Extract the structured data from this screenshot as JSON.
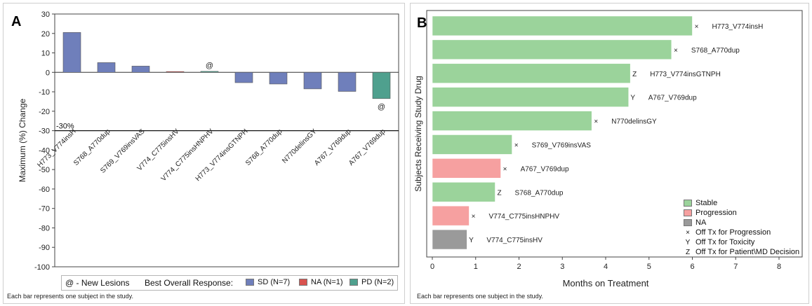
{
  "panel_a": {
    "label": "A",
    "footnote": "Each bar represents one subject in the study.",
    "legend": {
      "new_lesions": "@ - New Lesions",
      "title": "Best Overall Response:",
      "items": [
        {
          "label": "SD (N=7)",
          "color": "#6f7fbb"
        },
        {
          "label": "NA (N=1)",
          "color": "#d9534f"
        },
        {
          "label": "PD (N=2)",
          "color": "#4fa08e"
        }
      ]
    }
  },
  "panel_b": {
    "label": "B",
    "footnote": "Each bar represents one subject in the study.",
    "legend": {
      "items": [
        {
          "label": "Stable",
          "kind": "swatch",
          "color": "#9bd39b"
        },
        {
          "label": "Progression",
          "kind": "swatch",
          "color": "#f6a0a0"
        },
        {
          "label": "NA",
          "kind": "swatch",
          "color": "#9a9a9a"
        },
        {
          "label": "Off Tx for Progression",
          "kind": "symbol",
          "symbol": "×"
        },
        {
          "label": "Off Tx for Toxicity",
          "kind": "symbol",
          "symbol": "Y"
        },
        {
          "label": "Off Tx for Patient\\MD Decision",
          "kind": "symbol",
          "symbol": "Z"
        }
      ]
    }
  },
  "chart_data": [
    {
      "type": "bar",
      "ylabel": "Maximum (%) Change",
      "ylim": [
        -100,
        30
      ],
      "yticks": [
        30,
        20,
        10,
        0,
        -10,
        -20,
        -30,
        -40,
        -50,
        -60,
        -70,
        -80,
        -90,
        -100
      ],
      "reference_line": {
        "value": -30,
        "label": "-30%"
      },
      "categories": [
        "H773_V774insH",
        "S768_A770dup",
        "S769_V769insVAS",
        "V774_C775insHV",
        "V774_C775insHNPHV",
        "H773_V774insGTNPH",
        "S768_A770dup",
        "N770delinsGY",
        "A767_V769dup",
        "A767_V769dup"
      ],
      "values": [
        20.5,
        5,
        3.2,
        0.4,
        0.5,
        -5.3,
        -6,
        -8.5,
        -9.8,
        -13.5
      ],
      "response": [
        "SD",
        "SD",
        "SD",
        "NA",
        "PD",
        "SD",
        "SD",
        "SD",
        "SD",
        "PD"
      ],
      "annotations": [
        "",
        "",
        "",
        "",
        "@",
        "",
        "",
        "",
        "",
        "@"
      ],
      "colors": {
        "SD": "#6f7fbb",
        "NA": "#d9534f",
        "PD": "#4fa08e"
      },
      "grid": false
    },
    {
      "type": "bar",
      "orientation": "horizontal",
      "xlabel": "Months on Treatment",
      "ylabel": "Subjects Receiving Study Drug",
      "xlim": [
        0,
        8
      ],
      "xticks": [
        0,
        1,
        2,
        3,
        4,
        5,
        6,
        7,
        8
      ],
      "grid": false,
      "legend_position": "bottom-right",
      "categories": [
        "H773_V774insH",
        "S768_A770dup",
        "H773_V774insGTNPH",
        "A767_V769dup",
        "N770delinsGY",
        "S769_V769insVAS",
        "A767_V769dup",
        "S768_A770dup",
        "V774_C775insHNPHV",
        "V774_C775insHV"
      ],
      "values": [
        6.0,
        5.52,
        4.57,
        4.53,
        3.68,
        1.84,
        1.58,
        1.45,
        0.85,
        0.8
      ],
      "status": [
        "Stable",
        "Stable",
        "Stable",
        "Stable",
        "Stable",
        "Stable",
        "Progression",
        "Stable",
        "Progression",
        "NA"
      ],
      "markers": [
        "×",
        "×",
        "Z",
        "Y",
        "×",
        "×",
        "×",
        "Z",
        "×",
        "Y"
      ],
      "colors": {
        "Stable": "#9bd39b",
        "Progression": "#f6a0a0",
        "NA": "#9a9a9a"
      }
    }
  ]
}
